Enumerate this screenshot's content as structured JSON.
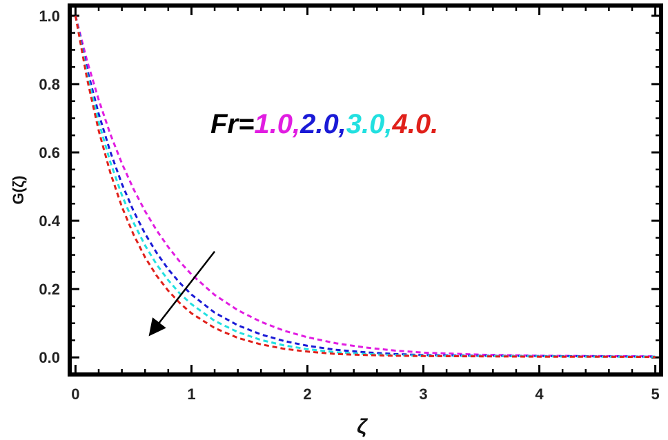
{
  "chart_data": {
    "type": "line",
    "xlabel": "ζ",
    "ylabel": "G(ζ)",
    "xlim": [
      -0.05,
      5.05
    ],
    "ylim": [
      -0.05,
      1.03
    ],
    "xticks": [
      0,
      1,
      2,
      3,
      4,
      5
    ],
    "xtick_labels": [
      "0",
      "1",
      "2",
      "3",
      "4",
      "5"
    ],
    "yticks": [
      0.0,
      0.2,
      0.4,
      0.6,
      0.8,
      1.0
    ],
    "ytick_labels": [
      "0.0",
      "0.2",
      "0.4",
      "0.6",
      "0.8",
      "1.0"
    ],
    "grid": false,
    "line_style": "dashed",
    "x": [
      0,
      0.1,
      0.2,
      0.3,
      0.4,
      0.5,
      0.6,
      0.7,
      0.8,
      0.9,
      1.0,
      1.2,
      1.4,
      1.6,
      1.8,
      2.0,
      2.25,
      2.5,
      2.75,
      3.0,
      3.5,
      4.0,
      4.5,
      5.0
    ],
    "series": [
      {
        "color": "#e11de1",
        "values": [
          1.0,
          0.868,
          0.754,
          0.654,
          0.568,
          0.493,
          0.428,
          0.372,
          0.323,
          0.28,
          0.243,
          0.183,
          0.138,
          0.104,
          0.078,
          0.059,
          0.041,
          0.029,
          0.02,
          0.014,
          0.008,
          0.005,
          0.004,
          0.003
        ]
      },
      {
        "color": "#1a1ad6",
        "values": [
          1.0,
          0.844,
          0.713,
          0.602,
          0.508,
          0.429,
          0.362,
          0.306,
          0.258,
          0.218,
          0.184,
          0.131,
          0.094,
          0.067,
          0.048,
          0.034,
          0.022,
          0.015,
          0.01,
          0.007,
          0.005,
          0.004,
          0.003,
          0.002
        ]
      },
      {
        "color": "#22e0e0",
        "values": [
          1.0,
          0.83,
          0.689,
          0.572,
          0.475,
          0.395,
          0.328,
          0.272,
          0.226,
          0.187,
          0.156,
          0.107,
          0.074,
          0.051,
          0.035,
          0.024,
          0.015,
          0.01,
          0.007,
          0.005,
          0.004,
          0.003,
          0.002,
          0.002
        ]
      },
      {
        "color": "#e0201a",
        "values": [
          1.0,
          0.815,
          0.664,
          0.541,
          0.441,
          0.36,
          0.293,
          0.239,
          0.195,
          0.159,
          0.129,
          0.086,
          0.057,
          0.038,
          0.025,
          0.017,
          0.01,
          0.007,
          0.005,
          0.004,
          0.003,
          0.002,
          0.002,
          0.001
        ]
      }
    ],
    "annotation": {
      "prefix": "Fr=",
      "parts": [
        {
          "text": "1.0,",
          "color": "#e11de1"
        },
        {
          "text": "2.0,",
          "color": "#1a1ad6"
        },
        {
          "text": "3.0,",
          "color": "#22e0e0"
        },
        {
          "text": "4.0.",
          "color": "#e0201a"
        }
      ]
    },
    "arrow": {
      "from": [
        1.2,
        0.31
      ],
      "to": [
        0.65,
        0.07
      ]
    }
  }
}
